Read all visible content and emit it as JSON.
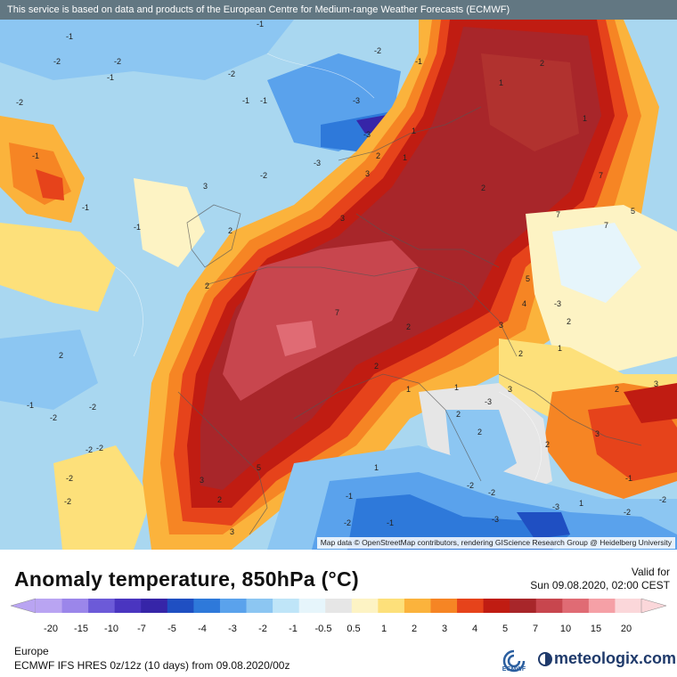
{
  "disclaimer": "This service is based on data and products of the European Centre for Medium-range Weather Forecasts (ECMWF)",
  "attribution": "Map data © OpenStreetMap contributors, rendering GIScience Research Group @ Heidelberg University",
  "title": "Anomaly temperature, 850hPa (°C)",
  "valid_label": "Valid for",
  "valid_date": "Sun 09.08.2020, 02:00 CEST",
  "region": "Europe",
  "model_info": "ECMWF IFS HRES 0z/12z (10 days) from  09.08.2020/00z",
  "brand": "meteologix.com",
  "ecmwf_label": "ECMWF",
  "legend": {
    "labels": [
      "-20",
      "-15",
      "-10",
      "-7",
      "-5",
      "-4",
      "-3",
      "-2",
      "-1",
      "-0.5",
      "0.5",
      "1",
      "2",
      "3",
      "4",
      "5",
      "7",
      "10",
      "15",
      "20"
    ],
    "colors": [
      "#b9a4f2",
      "#9b86ea",
      "#6c5ad8",
      "#4a35c0",
      "#3625a8",
      "#1f4fc2",
      "#2e79da",
      "#5aa2ec",
      "#8cc6f2",
      "#bfe5f8",
      "#e6f5fb",
      "#e6e6e6",
      "#fdf3c4",
      "#fde07a",
      "#fbb33c",
      "#f68524",
      "#e6431b",
      "#c01c12",
      "#a8262a",
      "#c8464e",
      "#e06b74",
      "#f5a0a6",
      "#fbd7da"
    ]
  },
  "contour_labels": [
    "-1",
    "-2",
    "-2",
    "-1",
    "-1",
    "-2",
    "-2",
    "-1",
    "-3",
    "-3",
    "-3",
    "-1",
    "-1",
    "-1",
    "-2",
    "-2",
    "-1",
    "1",
    "1",
    "2",
    "2",
    "3",
    "3",
    "2",
    "1",
    "1",
    "2",
    "7",
    "7",
    "7",
    "5",
    "5",
    "4",
    "3",
    "2",
    "2",
    "1",
    "1",
    "3",
    "2",
    "2",
    "1",
    "-1",
    "-2",
    "-1",
    "-2",
    "2",
    "1",
    "-2",
    "-3",
    "-2",
    "-2",
    "2",
    "3",
    "3",
    "-1",
    "-3",
    "2",
    "1",
    "2",
    "-3",
    "-2",
    "-2",
    "-2",
    "2",
    "3",
    "2",
    "3",
    "-2",
    "7",
    "5",
    "3",
    "-1",
    "2",
    "-1",
    "-2",
    "-2",
    "-3"
  ]
}
